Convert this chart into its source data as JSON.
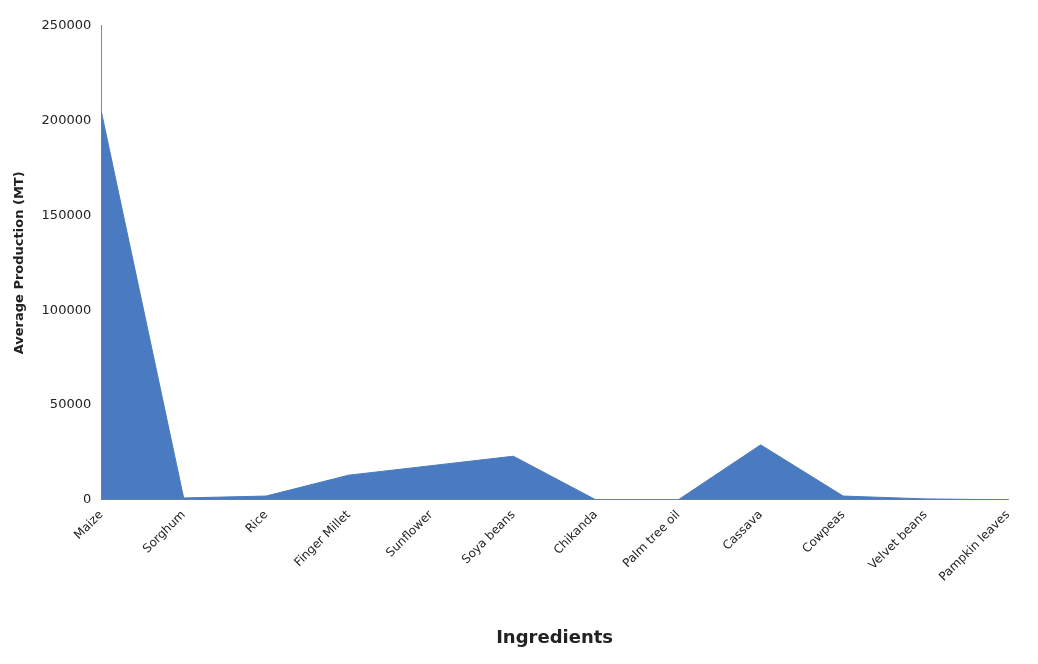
{
  "chart_data": {
    "type": "area",
    "xlabel": "Ingredients",
    "ylabel": "Average Production (MT)",
    "categories": [
      "Maize",
      "Sorghum",
      "Rice",
      "Finger Millet",
      "Sunflower",
      "Soya beans",
      "Chikanda",
      "Palm tree oil",
      "Cassava",
      "Cowpeas",
      "Velvet beans",
      "Pampkin leaves"
    ],
    "values": [
      205000,
      1000,
      2000,
      13000,
      18000,
      23000,
      0,
      0,
      29000,
      2000,
      500,
      0
    ],
    "color": "#4a7bc1",
    "ylim": [
      0,
      250000
    ],
    "yticks": [
      0,
      50000,
      100000,
      150000,
      200000,
      250000
    ],
    "grid": false,
    "legend": false
  }
}
